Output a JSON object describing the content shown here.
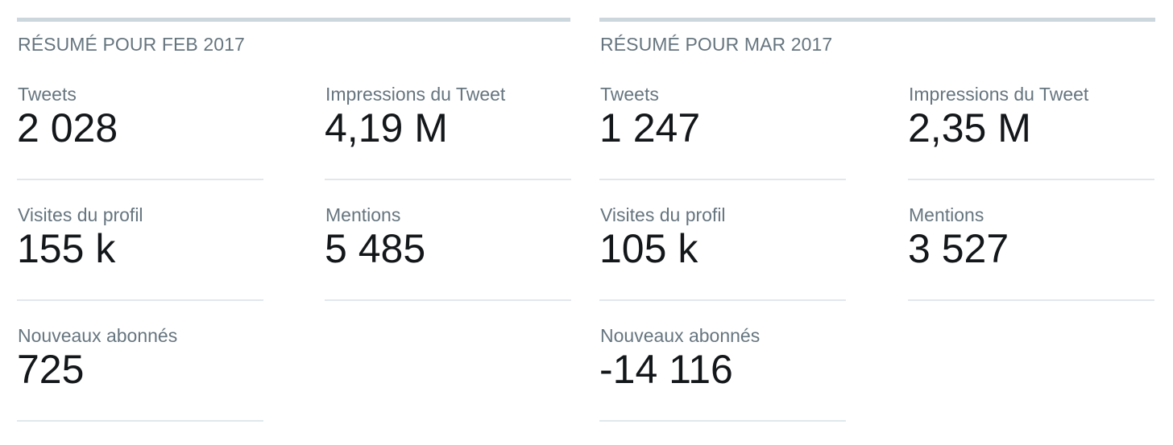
{
  "colors": {
    "label": "#66757f",
    "value": "#14171a",
    "top_rule": "#ccd6dd",
    "divider": "#e1e8ed"
  },
  "summaries": [
    {
      "title": "RÉSUMÉ POUR FEB 2017",
      "stats": {
        "tweets": {
          "label": "Tweets",
          "value": "2 028"
        },
        "impressions": {
          "label": "Impressions du Tweet",
          "value": "4,19 M"
        },
        "profile_visits": {
          "label": "Visites du profil",
          "value": "155 k"
        },
        "mentions": {
          "label": "Mentions",
          "value": "5 485"
        },
        "new_followers": {
          "label": "Nouveaux abonnés",
          "value": "725"
        }
      }
    },
    {
      "title": "RÉSUMÉ POUR MAR 2017",
      "stats": {
        "tweets": {
          "label": "Tweets",
          "value": "1 247"
        },
        "impressions": {
          "label": "Impressions du Tweet",
          "value": "2,35 M"
        },
        "profile_visits": {
          "label": "Visites du profil",
          "value": "105 k"
        },
        "mentions": {
          "label": "Mentions",
          "value": "3 527"
        },
        "new_followers": {
          "label": "Nouveaux abonnés",
          "value": "-14 116"
        }
      }
    }
  ]
}
